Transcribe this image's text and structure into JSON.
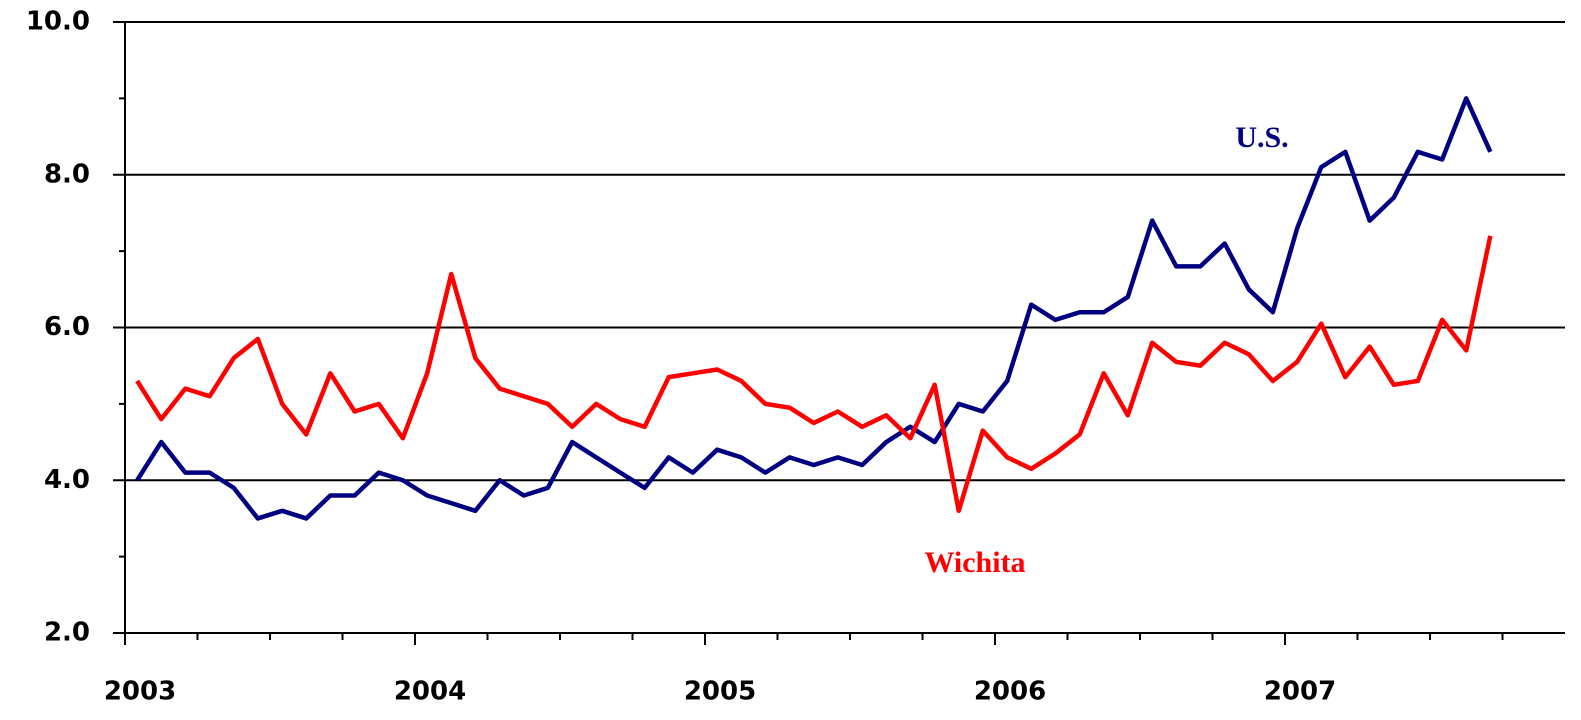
{
  "chart_data": {
    "type": "line",
    "annotations": [
      "U.S.",
      "Wichita"
    ],
    "x": [
      2003.042,
      2003.125,
      2003.208,
      2003.292,
      2003.375,
      2003.458,
      2003.542,
      2003.625,
      2003.708,
      2003.792,
      2003.875,
      2003.958,
      2004.042,
      2004.125,
      2004.208,
      2004.292,
      2004.375,
      2004.458,
      2004.542,
      2004.625,
      2004.708,
      2004.792,
      2004.875,
      2004.958,
      2005.042,
      2005.125,
      2005.208,
      2005.292,
      2005.375,
      2005.458,
      2005.542,
      2005.625,
      2005.708,
      2005.792,
      2005.875,
      2005.958,
      2006.042,
      2006.125,
      2006.208,
      2006.292,
      2006.375,
      2006.458,
      2006.542,
      2006.625,
      2006.708,
      2006.792,
      2006.875,
      2006.958,
      2007.042,
      2007.125,
      2007.208,
      2007.292,
      2007.375,
      2007.458,
      2007.542,
      2007.625,
      2007.708
    ],
    "series": [
      {
        "name": "U.S.",
        "color": "#000080",
        "values": [
          4.0,
          4.5,
          4.1,
          4.1,
          3.9,
          3.5,
          3.6,
          3.5,
          3.8,
          3.8,
          4.1,
          4.0,
          3.8,
          3.7,
          3.6,
          4.0,
          3.8,
          3.9,
          4.5,
          4.3,
          4.1,
          3.9,
          4.3,
          4.1,
          4.4,
          4.3,
          4.1,
          4.3,
          4.2,
          4.3,
          4.2,
          4.5,
          4.7,
          4.5,
          5.0,
          4.9,
          5.3,
          6.3,
          6.1,
          6.2,
          6.2,
          6.4,
          7.4,
          6.8,
          6.8,
          7.1,
          6.5,
          6.2,
          7.3,
          8.1,
          8.3,
          7.4,
          7.7,
          8.3,
          8.2,
          9.0,
          8.3
        ]
      },
      {
        "name": "Wichita",
        "color": "#ff0000",
        "values": [
          5.3,
          4.8,
          5.2,
          5.1,
          5.6,
          5.85,
          5.0,
          4.6,
          5.4,
          4.9,
          5.0,
          4.55,
          5.4,
          6.7,
          5.6,
          5.2,
          5.1,
          5.0,
          4.7,
          5.0,
          4.8,
          4.7,
          5.35,
          5.4,
          5.45,
          5.3,
          5.0,
          4.95,
          4.75,
          4.9,
          4.7,
          4.85,
          4.55,
          5.25,
          3.6,
          4.65,
          4.3,
          4.15,
          4.35,
          4.6,
          5.4,
          4.85,
          5.8,
          5.55,
          5.5,
          5.8,
          5.65,
          5.3,
          5.55,
          6.05,
          5.35,
          5.75,
          5.25,
          5.3,
          6.1,
          5.7,
          7.2
        ]
      }
    ],
    "xlim": [
      2003,
      2008
    ],
    "xticks": [
      2003,
      2004,
      2005,
      2006,
      2007
    ],
    "xminorticks": [
      2003.25,
      2003.5,
      2003.75,
      2004.25,
      2004.5,
      2004.75,
      2005.25,
      2005.5,
      2005.75,
      2006.25,
      2006.5,
      2006.75,
      2007.25,
      2007.5,
      2007.75
    ],
    "ylim": [
      2,
      10
    ],
    "yticks": [
      {
        "value": 2,
        "label": "2.0"
      },
      {
        "value": 4,
        "label": "4.0"
      },
      {
        "value": 6,
        "label": "6.0"
      },
      {
        "value": 8,
        "label": "8.0"
      },
      {
        "value": 10,
        "label": "10.0"
      }
    ],
    "yminorticks": [
      3,
      5,
      7,
      9
    ],
    "grid": true
  }
}
